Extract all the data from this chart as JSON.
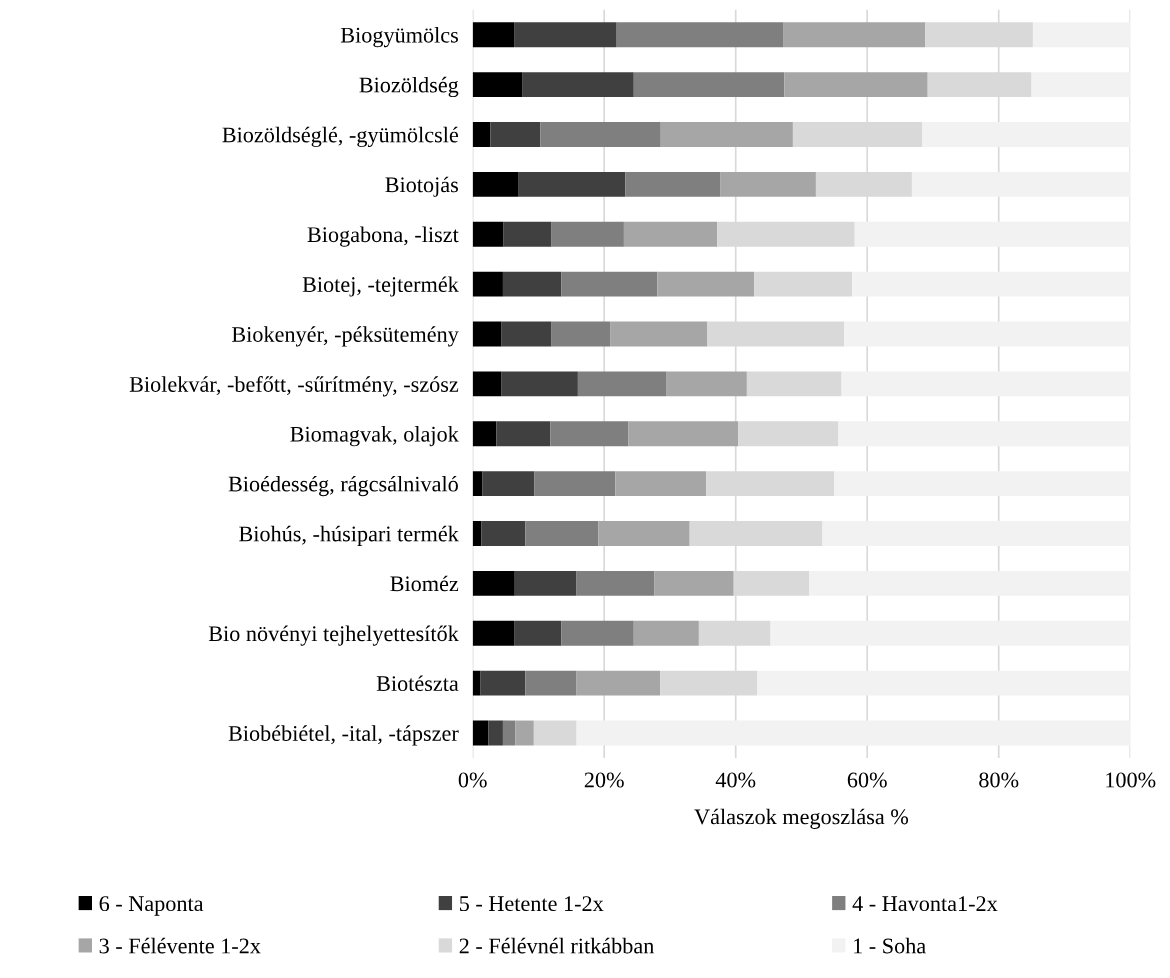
{
  "chart_data": {
    "type": "bar",
    "orientation": "horizontal",
    "stacked": true,
    "xlabel": "Válaszok megoszlása %",
    "categories": [
      "Biogyümölcs",
      "Biozöldség",
      "Biozöldséglé, -gyümölcslé",
      "Biotojás",
      "Biogabona, -liszt",
      "Biotej, -tejtermék",
      "Biokenyér, -péksütemény",
      "Biolekvár, -befőtt, -sűrítmény, -szósz",
      "Biomagvak, olajok",
      "Bioédesség, rágcsálnivaló",
      "Biohús, -húsipari termék",
      "Bioméz",
      "Bio növényi tejhelyettesítők",
      "Biotészta",
      "Biobébiétel, -ital, -tápszer"
    ],
    "series": [
      {
        "name": "6 - Naponta",
        "color": "#000000",
        "values": [
          6.3,
          7.6,
          2.7,
          6.9,
          4.7,
          4.6,
          4.4,
          4.4,
          3.6,
          1.5,
          1.3,
          6.4,
          6.3,
          1.2,
          2.4
        ]
      },
      {
        "name": "5 - Hetente 1-2x",
        "color": "#404040",
        "values": [
          15.6,
          16.9,
          7.6,
          16.3,
          7.3,
          8.9,
          7.6,
          11.6,
          8.2,
          7.9,
          6.7,
          9.4,
          7.2,
          6.8,
          2.2
        ]
      },
      {
        "name": "4 - Havonta1-2x",
        "color": "#7f7f7f",
        "values": [
          25.3,
          22.9,
          18.3,
          14.5,
          11.0,
          14.6,
          8.9,
          13.5,
          11.9,
          12.3,
          11.1,
          11.8,
          11.0,
          7.8,
          1.9
        ]
      },
      {
        "name": "3 - Félévente 1-2x",
        "color": "#a6a6a6",
        "values": [
          21.6,
          21.8,
          20.1,
          14.5,
          14.2,
          14.7,
          14.8,
          12.2,
          16.7,
          13.8,
          13.9,
          12.1,
          9.9,
          12.7,
          2.8
        ]
      },
      {
        "name": "2 - Félévnél ritkábban",
        "color": "#d9d9d9",
        "values": [
          16.4,
          15.8,
          19.7,
          14.6,
          20.9,
          14.9,
          20.8,
          14.4,
          15.2,
          19.5,
          20.2,
          11.5,
          10.9,
          14.8,
          6.5
        ]
      },
      {
        "name": "1 - Soha",
        "color": "#f2f2f2",
        "values": [
          14.8,
          15.0,
          31.6,
          33.2,
          41.9,
          42.3,
          43.5,
          43.9,
          44.4,
          45.0,
          46.8,
          48.8,
          54.7,
          56.7,
          84.2
        ]
      }
    ],
    "xlim": [
      0,
      100
    ],
    "xticks": [
      {
        "value": 0,
        "label": "0%"
      },
      {
        "value": 20,
        "label": "20%"
      },
      {
        "value": 40,
        "label": "40%"
      },
      {
        "value": 60,
        "label": "60%"
      },
      {
        "value": 80,
        "label": "80%"
      },
      {
        "value": 100,
        "label": "100%"
      }
    ],
    "grid": "x",
    "legend": "bottom"
  }
}
